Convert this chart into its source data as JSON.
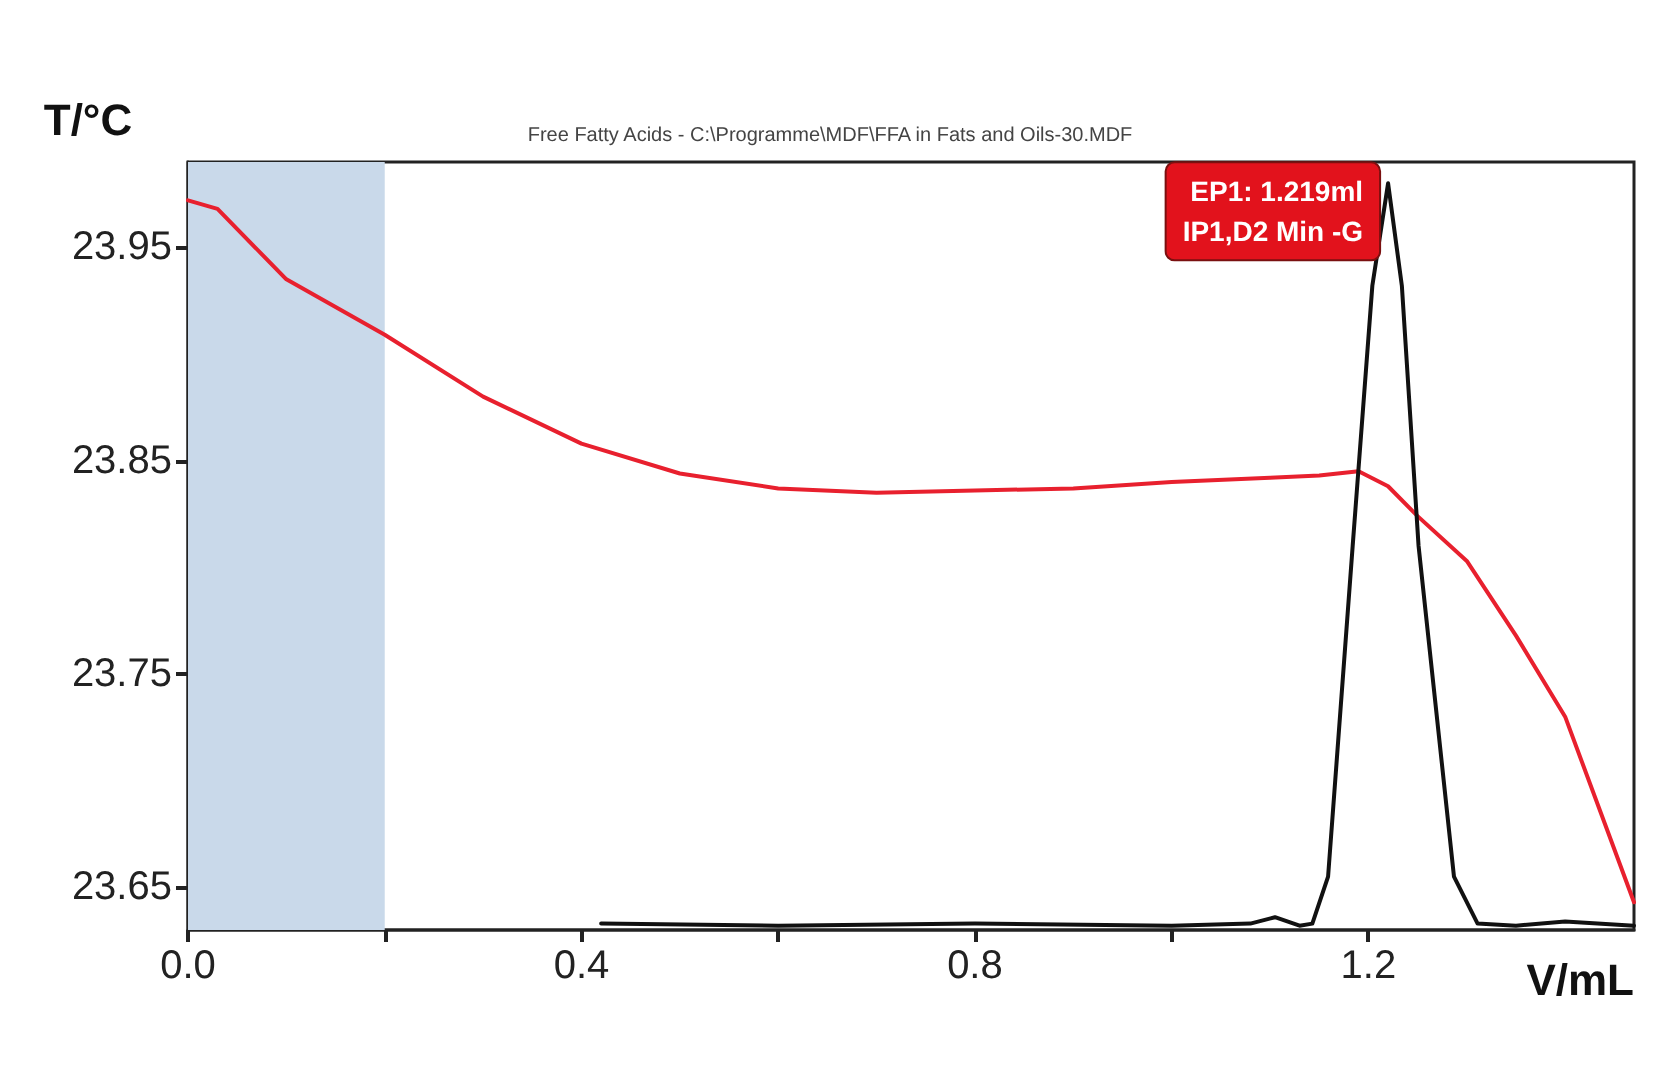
{
  "chart_data": {
    "type": "line",
    "title": "Free Fatty Acids - C:\\Programme\\MDF\\FFA in Fats and Oils-30.MDF",
    "xlabel": "V/mL",
    "ylabel": "T/°C",
    "xlim": [
      0,
      1.47
    ],
    "ylim": [
      23.63,
      23.99
    ],
    "xticks": [
      {
        "value": 0,
        "label": "0.0"
      },
      {
        "value": 0.2,
        "label": null
      },
      0.4,
      {
        "value": 0.6,
        "label": null
      },
      0.8,
      {
        "value": 1.0,
        "label": null
      },
      1.2
    ],
    "yticks": [
      23.65,
      23.75,
      23.85,
      23.95
    ],
    "grid": false,
    "marker": "none",
    "line_style": "solid",
    "bands": [
      {
        "axis": "x",
        "from": 0,
        "to": 0.2,
        "color": "#c9d9ea"
      }
    ],
    "annotations": [
      {
        "text": "EP1: 1.219ml\nIP1,D2 Min -G",
        "x": 1.219,
        "y": 23.98
      }
    ],
    "series": [
      {
        "color": "#e8202e",
        "x": [
          0,
          0.03,
          0.1,
          0.2,
          0.3,
          0.4,
          0.5,
          0.6,
          0.7,
          0.8,
          0.9,
          1.0,
          1.1,
          1.15,
          1.19,
          1.22,
          1.25,
          1.3,
          1.35,
          1.4,
          1.47
        ],
        "values": [
          23.972,
          23.968,
          23.935,
          23.909,
          23.88,
          23.858,
          23.844,
          23.837,
          23.835,
          23.836,
          23.837,
          23.84,
          23.842,
          23.843,
          23.845,
          23.838,
          23.824,
          23.803,
          23.768,
          23.73,
          23.643
        ]
      },
      {
        "color": "#111111",
        "x": [
          0.42,
          0.6,
          0.8,
          1.0,
          1.08,
          1.105,
          1.13,
          1.143,
          1.159,
          1.184,
          1.204,
          1.22,
          1.234,
          1.251,
          1.287,
          1.311,
          1.35,
          1.4,
          1.47
        ],
        "values": [
          23.633,
          23.632,
          23.633,
          23.632,
          23.633,
          23.636,
          23.632,
          23.633,
          23.655,
          23.81,
          23.932,
          23.98,
          23.932,
          23.81,
          23.655,
          23.633,
          23.632,
          23.634,
          23.632
        ]
      }
    ]
  }
}
